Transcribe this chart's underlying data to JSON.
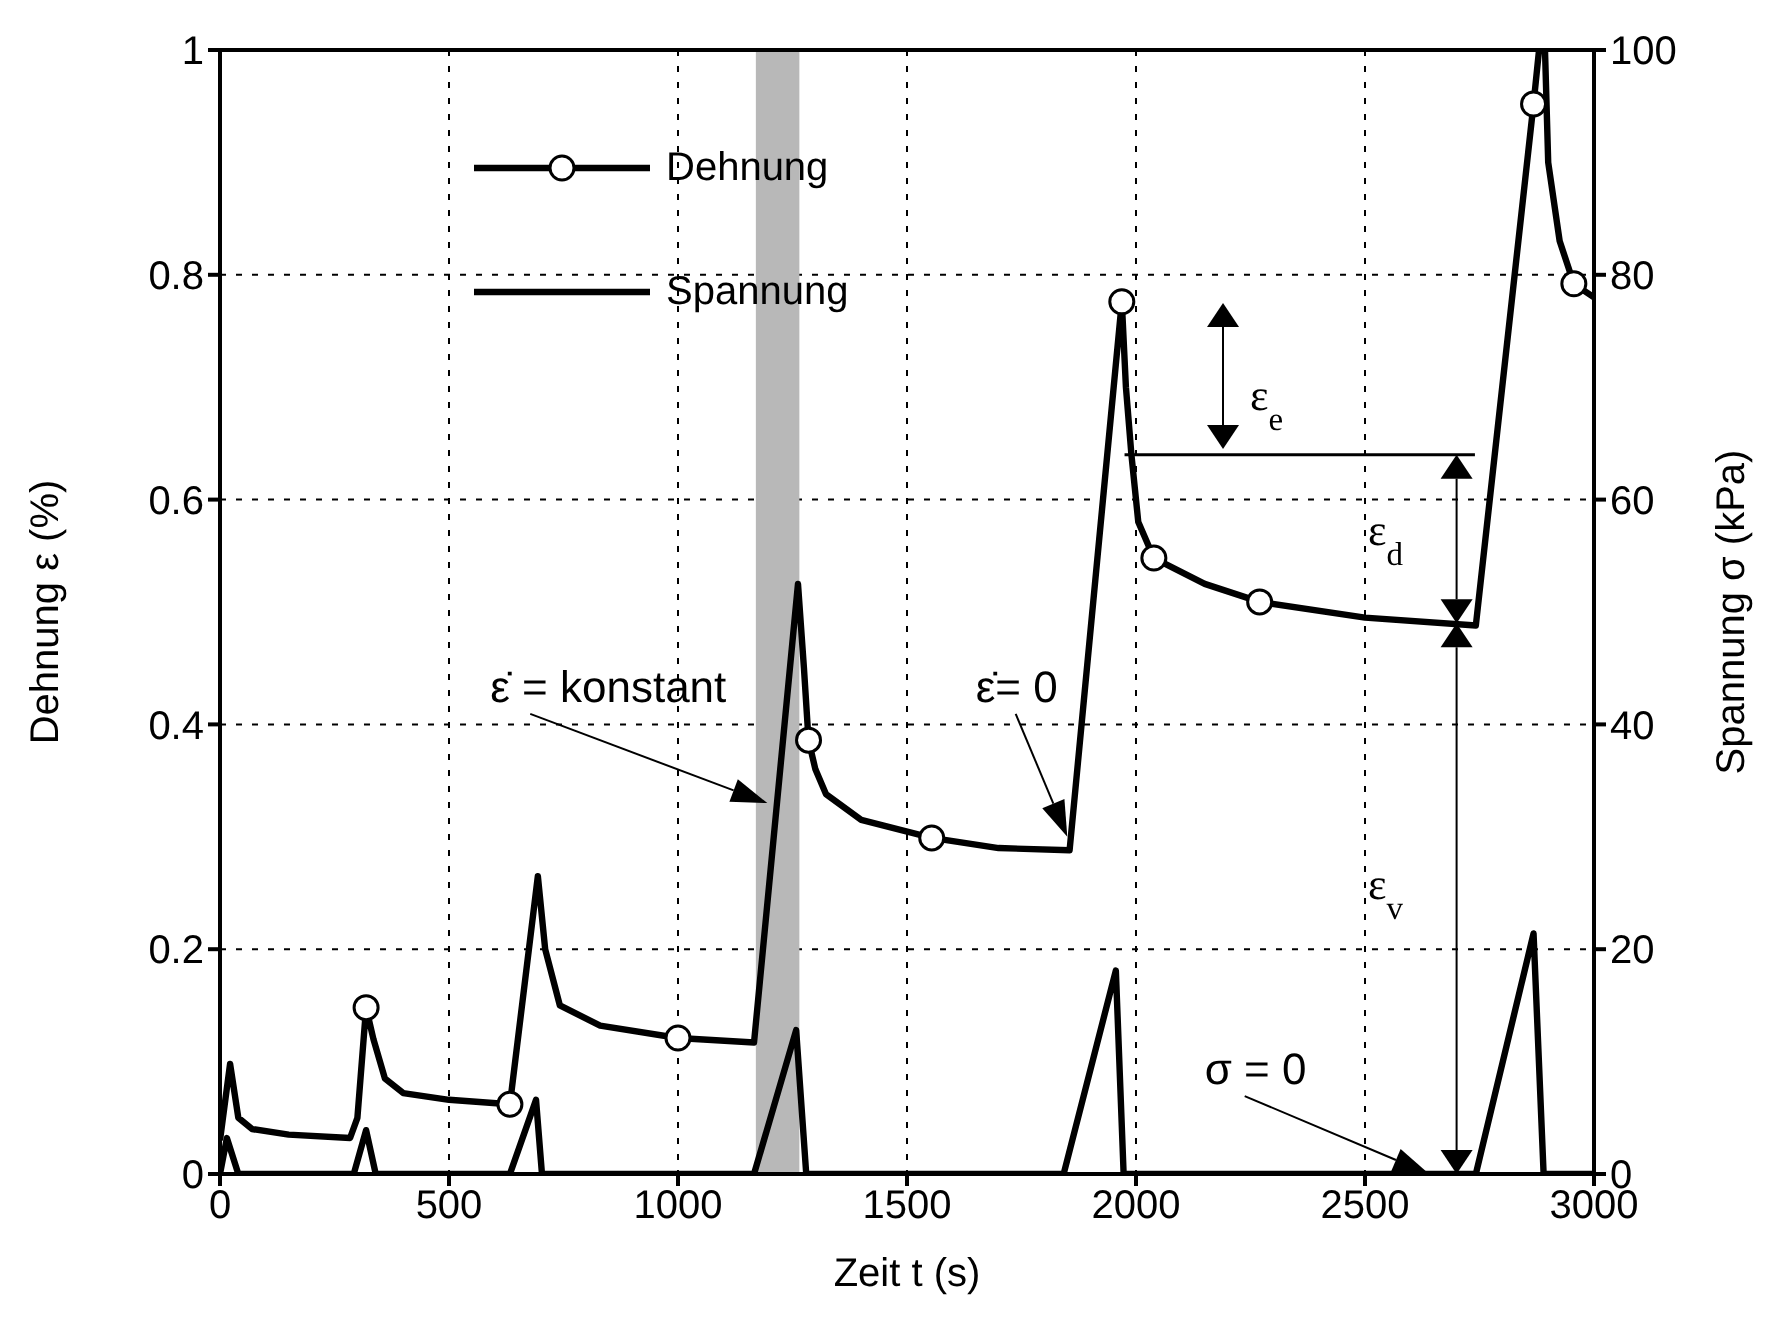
{
  "chart_data": {
    "type": "line",
    "xlabel": "Zeit  t (s)",
    "ylabel": "Dehnung  ε (%)",
    "y2label": "Spannung σ  (kPa)",
    "xlim": [
      0,
      3000
    ],
    "xticks": [
      0,
      500,
      1000,
      1500,
      2000,
      2500,
      3000
    ],
    "ylim": [
      0,
      1
    ],
    "yticks": [
      0,
      0.2,
      0.4,
      0.6,
      0.8,
      1
    ],
    "y2lim": [
      0,
      100
    ],
    "y2ticks": [
      0,
      20,
      40,
      60,
      80,
      100
    ],
    "grid": true,
    "legend": "top left",
    "line_style": "solid",
    "series": [
      {
        "name": "Dehnung",
        "marker": "none",
        "color": "#000000",
        "x": [
          0,
          22,
          40,
          70,
          150,
          284,
          300,
          319,
          335,
          360,
          400,
          500,
          633,
          694,
          710,
          742,
          830,
          1000,
          1166,
          1262,
          1275,
          1285,
          1300,
          1323,
          1400,
          1554,
          1700,
          1855,
          1969,
          1978,
          1990,
          2005,
          2039,
          2150,
          2270,
          2500,
          2742,
          2868,
          2880,
          2893,
          2900,
          2925,
          2956,
          3000
        ],
        "values": [
          0.03,
          0.098,
          0.05,
          0.04,
          0.035,
          0.032,
          0.05,
          0.148,
          0.12,
          0.085,
          0.072,
          0.066,
          0.062,
          0.265,
          0.2,
          0.15,
          0.132,
          0.121,
          0.117,
          0.525,
          0.45,
          0.386,
          0.36,
          0.338,
          0.315,
          0.299,
          0.29,
          0.288,
          0.776,
          0.7,
          0.64,
          0.58,
          0.548,
          0.525,
          0.509,
          0.495,
          0.488,
          0.952,
          1.0,
          1.0,
          0.9,
          0.83,
          0.792,
          0.78
        ]
      },
      {
        "type": "scatter",
        "marker": "circle",
        "color": "#000000",
        "x": [
          319,
          633,
          1000,
          1285,
          1554,
          1969,
          2039,
          2270,
          2868,
          2956
        ],
        "values": [
          0.148,
          0.062,
          0.121,
          0.386,
          0.299,
          0.776,
          0.548,
          0.509,
          0.952,
          0.792
        ]
      },
      {
        "name": "Spannung",
        "axis": "y2",
        "marker": "none",
        "color": "#000000",
        "x": [
          0,
          15,
          40,
          292,
          319,
          340,
          633,
          690,
          703,
          1166,
          1258,
          1280,
          1842,
          1956,
          1973,
          2742,
          2868,
          2890,
          3000
        ],
        "values": [
          0,
          3.2,
          0,
          0,
          3.9,
          0,
          0,
          6.6,
          0,
          0,
          12.8,
          0,
          0,
          18.1,
          0,
          0,
          21.4,
          0,
          0
        ]
      }
    ],
    "bands": [
      {
        "axis": "x",
        "from": 1170,
        "to": 1265,
        "color": "#b8b8b8"
      }
    ],
    "annotations": [
      "ε̇ = konstant",
      "ε̇= 0",
      "σ = 0",
      "ε$_{e}$",
      "ε$_{d}$",
      "ε$_{v}$"
    ]
  }
}
